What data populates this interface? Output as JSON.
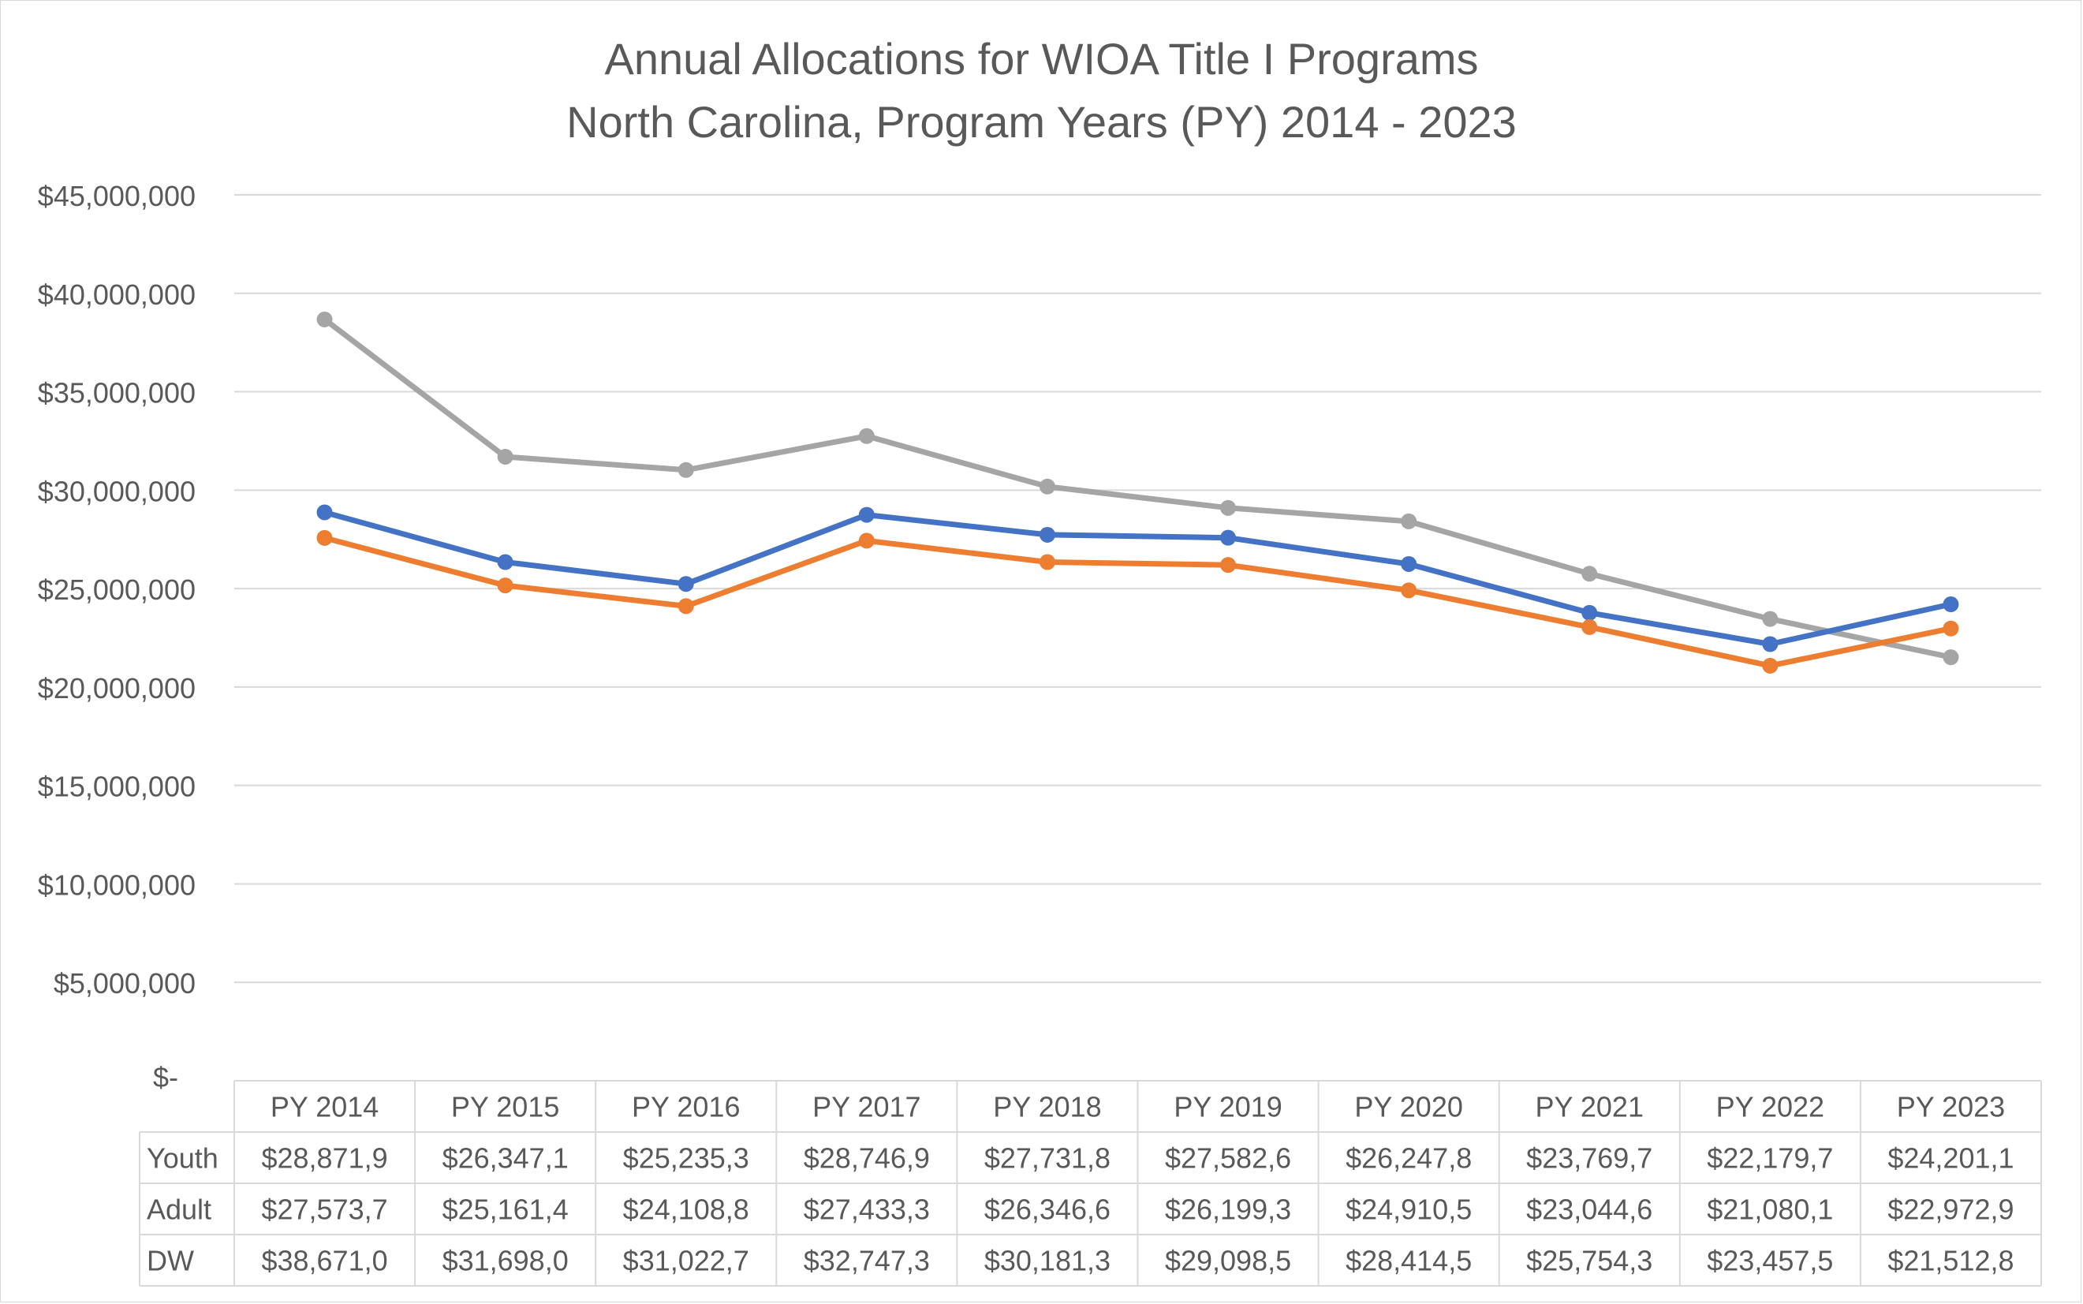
{
  "chart_data": {
    "type": "line",
    "title_lines": [
      "Annual Allocations for WIOA Title I Programs",
      "North Carolina, Program Years (PY) 2014 - 2023"
    ],
    "categories": [
      "PY 2014",
      "PY 2015",
      "PY 2016",
      "PY 2017",
      "PY 2018",
      "PY 2019",
      "PY 2020",
      "PY 2021",
      "PY 2022",
      "PY 2023"
    ],
    "ylim": [
      0,
      45000000
    ],
    "yticks": [
      {
        "value": 0,
        "label": "$-"
      },
      {
        "value": 5000000,
        "label": "$5,000,000"
      },
      {
        "value": 10000000,
        "label": "$10,000,000"
      },
      {
        "value": 15000000,
        "label": "$15,000,000"
      },
      {
        "value": 20000000,
        "label": "$20,000,000"
      },
      {
        "value": 25000000,
        "label": "$25,000,000"
      },
      {
        "value": 30000000,
        "label": "$30,000,000"
      },
      {
        "value": 35000000,
        "label": "$35,000,000"
      },
      {
        "value": 40000000,
        "label": "$40,000,000"
      },
      {
        "value": 45000000,
        "label": "$45,000,000"
      }
    ],
    "grid": true,
    "data_table": true,
    "series": [
      {
        "name": "Youth",
        "color": "#4472C4",
        "values": [
          28871900,
          26347100,
          25235300,
          28746900,
          27731800,
          27582600,
          26247800,
          23769700,
          22179700,
          24201100
        ],
        "table_labels": [
          "$28,871,9",
          "$26,347,1",
          "$25,235,3",
          "$28,746,9",
          "$27,731,8",
          "$27,582,6",
          "$26,247,8",
          "$23,769,7",
          "$22,179,7",
          "$24,201,1"
        ]
      },
      {
        "name": "Adult",
        "color": "#ED7D31",
        "values": [
          27573700,
          25161400,
          24108800,
          27433300,
          26346600,
          26199300,
          24910500,
          23044600,
          21080100,
          22972900
        ],
        "table_labels": [
          "$27,573,7",
          "$25,161,4",
          "$24,108,8",
          "$27,433,3",
          "$26,346,6",
          "$26,199,3",
          "$24,910,5",
          "$23,044,6",
          "$21,080,1",
          "$22,972,9"
        ]
      },
      {
        "name": "DW",
        "color": "#A5A5A5",
        "values": [
          38671000,
          31698000,
          31022700,
          32747300,
          30181300,
          29098500,
          28414500,
          25754300,
          23457500,
          21512800
        ],
        "table_labels": [
          "$38,671,0",
          "$31,698,0",
          "$31,022,7",
          "$32,747,3",
          "$30,181,3",
          "$29,098,5",
          "$28,414,5",
          "$25,754,3",
          "$23,457,5",
          "$21,512,8"
        ]
      }
    ]
  }
}
